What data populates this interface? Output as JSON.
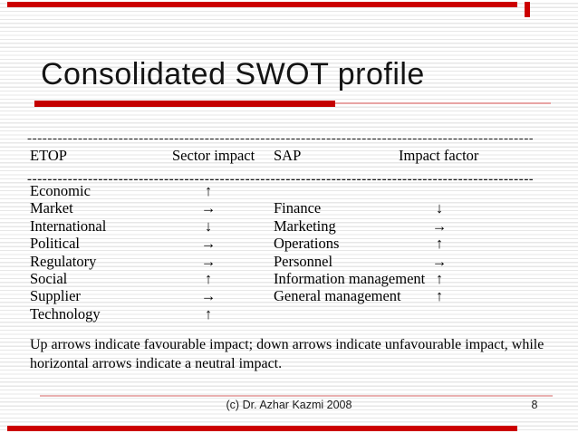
{
  "title": "Consolidated SWOT profile",
  "divider": "-------------------------------------------------------------------------------------------------------------------",
  "table": {
    "columns": [
      "ETOP",
      "Sector impact",
      "SAP",
      "Impact factor"
    ],
    "rows": [
      {
        "etop": "Economic",
        "sector_impact": "↑",
        "sap": "",
        "impact_factor": ""
      },
      {
        "etop": "Market",
        "sector_impact": "→",
        "sap": "Finance",
        "impact_factor": "↓"
      },
      {
        "etop": "International",
        "sector_impact": "↓",
        "sap": "Marketing",
        "impact_factor": "→"
      },
      {
        "etop": "Political",
        "sector_impact": "→",
        "sap": "Operations",
        "impact_factor": "↑"
      },
      {
        "etop": "Regulatory",
        "sector_impact": "→",
        "sap": "Personnel",
        "impact_factor": "→"
      },
      {
        "etop": "Social",
        "sector_impact": "↑",
        "sap": "Information management",
        "impact_factor": "↑"
      },
      {
        "etop": "Supplier",
        "sector_impact": "→",
        "sap": "General management",
        "impact_factor": "↑"
      },
      {
        "etop": "Technology",
        "sector_impact": "↑",
        "sap": "",
        "impact_factor": ""
      }
    ]
  },
  "note": "Up arrows indicate favourable impact; down arrows indicate unfavourable impact, while\nhorizontal arrows indicate a neutral impact.",
  "footer": {
    "credit": "(c) Dr. Azhar Kazmi 2008",
    "page": "8"
  },
  "colors": {
    "accent_red": "#cc0000",
    "underline_red": "#c40000",
    "accent_pink": "#e8a4a4",
    "stripe_gray": "#e7e7e7"
  }
}
